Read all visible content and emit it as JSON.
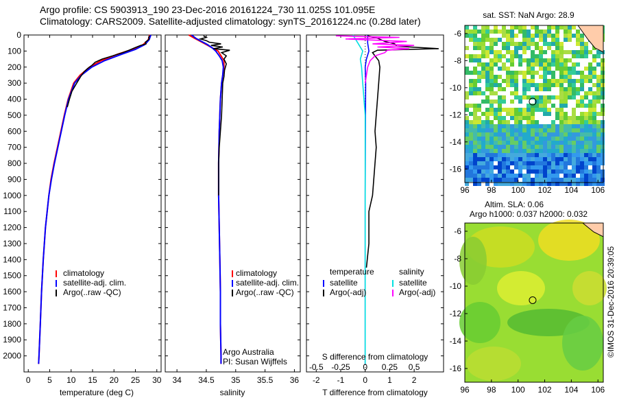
{
  "header": {
    "line1": "Argo profile: CS 5903913_190 23-Dec-2016 20161224_730 11.025S 101.095E",
    "line2": "Climatology: CARS2009. Satellite-adjusted climatology: synTS_20161224.nc (0.28d later)"
  },
  "side_label": "©IMOS 31-Dec-2016 20:39:05",
  "credits": {
    "line1": "Argo Australia",
    "line2": "PI: Susan Wijffels"
  },
  "colors": {
    "climatology": "#ff0000",
    "satellite": "#0000ff",
    "argo": "#000000",
    "sal_satellite": "#00e0e0",
    "sal_argo": "#ff00ff",
    "land": "#ffccaa",
    "sst_marker": "#000000"
  },
  "chart_data": [
    {
      "type": "line",
      "xlabel": "temperature (deg C)",
      "xlim": [
        -1,
        31
      ],
      "ylim": [
        2100,
        0
      ],
      "xticks": [
        0,
        5,
        10,
        15,
        20,
        25,
        30
      ],
      "yticks": [
        0,
        100,
        200,
        300,
        400,
        500,
        600,
        700,
        800,
        900,
        1000,
        1100,
        1200,
        1300,
        1400,
        1500,
        1600,
        1700,
        1800,
        1900,
        2000
      ],
      "legend": [
        "climatology",
        "satellite-adj. clim.",
        "Argo(..raw -QC)"
      ],
      "series": [
        {
          "name": "climatology",
          "depth": [
            0,
            30,
            60,
            90,
            120,
            160,
            200,
            250,
            300,
            400,
            500,
            600,
            700,
            800,
            900,
            1000,
            1200,
            1400,
            1600,
            1800,
            2000,
            2050
          ],
          "values": [
            28.3,
            28.0,
            26.8,
            24.3,
            20.8,
            17.0,
            14.3,
            12.1,
            10.6,
            9.3,
            8.4,
            7.6,
            6.8,
            6.0,
            5.3,
            4.8,
            4.0,
            3.5,
            3.1,
            2.8,
            2.5,
            2.4
          ]
        },
        {
          "name": "satellite-adj. clim.",
          "depth": [
            0,
            30,
            60,
            90,
            120,
            160,
            200,
            250,
            300,
            400,
            500,
            600,
            700,
            800,
            900,
            1000,
            1200,
            1400,
            1600,
            1800,
            2000,
            2050
          ],
          "values": [
            28.6,
            28.2,
            27.2,
            25.0,
            21.8,
            17.8,
            14.8,
            12.4,
            10.8,
            9.4,
            8.5,
            7.7,
            6.9,
            6.1,
            5.4,
            4.8,
            4.0,
            3.5,
            3.1,
            2.8,
            2.5,
            2.4
          ]
        },
        {
          "name": "Argo(..raw -QC)",
          "depth": [
            5,
            15,
            25,
            35,
            45,
            55,
            65,
            80,
            95,
            110,
            130,
            150,
            170,
            190,
            210,
            230,
            260,
            300,
            350,
            400,
            450
          ],
          "values": [
            28.3,
            28.1,
            28.2,
            27.8,
            27.3,
            27.5,
            26.2,
            24.8,
            23.5,
            22.0,
            19.7,
            17.2,
            15.6,
            14.8,
            13.8,
            13.0,
            12.2,
            11.3,
            10.2,
            9.6,
            9.1
          ]
        }
      ]
    },
    {
      "type": "line",
      "xlabel": "salinity",
      "xlim": [
        33.8,
        36.1
      ],
      "ylim": [
        2100,
        0
      ],
      "xticks": [
        34,
        34.5,
        35,
        35.5,
        36
      ],
      "legend": [
        "climatology",
        "satellite-adj. clim.",
        "Argo(..raw -QC)"
      ],
      "series": [
        {
          "name": "climatology",
          "depth": [
            0,
            20,
            40,
            60,
            80,
            100,
            130,
            160,
            200,
            250,
            300,
            400,
            600,
            800,
            1000,
            1200,
            1400,
            1600,
            1800,
            2000,
            2050
          ],
          "values": [
            34.2,
            34.3,
            34.4,
            34.5,
            34.6,
            34.7,
            34.75,
            34.8,
            34.8,
            34.78,
            34.76,
            34.74,
            34.72,
            34.71,
            34.71,
            34.72,
            34.73,
            34.74,
            34.74,
            34.75,
            34.75
          ]
        },
        {
          "name": "satellite-adj. clim.",
          "depth": [
            0,
            20,
            40,
            60,
            80,
            100,
            130,
            160,
            200,
            250,
            300,
            400,
            600,
            800,
            1000,
            1200,
            1400,
            1600,
            1800,
            2000,
            2050
          ],
          "values": [
            34.25,
            34.32,
            34.42,
            34.52,
            34.6,
            34.66,
            34.72,
            34.77,
            34.79,
            34.78,
            34.76,
            34.74,
            34.72,
            34.71,
            34.71,
            34.72,
            34.73,
            34.74,
            34.74,
            34.75,
            34.75
          ]
        },
        {
          "name": "Argo(..raw -QC)",
          "depth": [
            5,
            15,
            25,
            35,
            45,
            55,
            65,
            75,
            85,
            95,
            110,
            130,
            150,
            180,
            220,
            260,
            300,
            400,
            500,
            600,
            700,
            800,
            900,
            1000
          ],
          "values": [
            34.45,
            34.5,
            34.4,
            34.5,
            34.55,
            34.75,
            34.58,
            34.78,
            34.62,
            34.9,
            34.76,
            34.84,
            34.8,
            34.84,
            34.81,
            34.8,
            34.78,
            34.77,
            34.76,
            34.74,
            34.72,
            34.71,
            34.71,
            34.71
          ]
        }
      ]
    },
    {
      "type": "line",
      "xlabel": "T difference from climatology",
      "top_label": "S difference from climatology",
      "xlim": [
        -2.4,
        3.2
      ],
      "ylim": [
        2100,
        0
      ],
      "xticks": [
        -2,
        -1,
        0,
        1,
        2
      ],
      "top_ticks": [
        "-0.5",
        "-0.25",
        "0",
        "0.25",
        "0.5"
      ],
      "legend_left_title": "temperature",
      "legend_right_title": "salinity",
      "legend": [
        "satellite",
        "Argo(-adj)",
        "satellite",
        "Argo(-adj)"
      ],
      "series": [
        {
          "name": "temperature satellite",
          "depth": [
            0,
            50,
            100,
            150,
            200,
            300,
            500,
            1000,
            1500,
            2050
          ],
          "values": [
            0.1,
            0.1,
            0.15,
            0.05,
            0.0,
            0.02,
            0.01,
            0.0,
            0.0,
            0.0
          ]
        },
        {
          "name": "temperature Argo(-adj)",
          "depth": [
            5,
            20,
            40,
            55,
            70,
            85,
            95,
            110,
            130,
            160,
            200,
            300,
            400,
            500,
            600,
            700,
            800,
            900,
            1000,
            1100,
            1300,
            1450
          ],
          "values": [
            0.1,
            0.5,
            0.8,
            1.2,
            1.3,
            3.0,
            0.5,
            0.3,
            0.4,
            0.55,
            0.6,
            0.55,
            0.5,
            0.45,
            0.4,
            0.45,
            0.4,
            0.35,
            0.3,
            0.15,
            0.15,
            0.05
          ]
        },
        {
          "name": "salinity satellite",
          "depth": [
            0,
            50,
            100,
            150,
            200,
            300,
            500,
            1000,
            1500,
            2050
          ],
          "values": [
            -0.5,
            -0.3,
            -0.1,
            -0.2,
            -0.15,
            -0.1,
            0.0,
            0.0,
            0.0,
            0.0
          ]
        },
        {
          "name": "salinity Argo(-adj)",
          "depth": [
            5,
            15,
            25,
            40,
            55,
            65,
            75,
            85,
            95,
            110,
            130,
            160,
            200,
            250,
            300
          ],
          "values": [
            -1.2,
            1.4,
            -0.8,
            1.7,
            0.3,
            2.0,
            0.5,
            1.8,
            0.9,
            0.8,
            0.4,
            0.2,
            0.1,
            0.05,
            0.0
          ]
        }
      ]
    },
    {
      "type": "heatmap",
      "title": "sat. SST: NaN Argo: 28.9",
      "xlim": [
        96,
        106.4
      ],
      "ylim": [
        -17,
        -5.4
      ],
      "xticks": [
        96,
        98,
        100,
        102,
        104,
        106
      ],
      "yticks": [
        -6,
        -8,
        -10,
        -12,
        -14,
        -16
      ],
      "marker": [
        101.095,
        -11.025
      ]
    },
    {
      "type": "heatmap",
      "title": "Altim. SLA: 0.06",
      "subtitle": "Argo h1000: 0.037 h2000: 0.032",
      "xlim": [
        96,
        106.4
      ],
      "ylim": [
        -17,
        -5.4
      ],
      "xticks": [
        96,
        98,
        100,
        102,
        104,
        106
      ],
      "yticks": [
        -6,
        -8,
        -10,
        -12,
        -14,
        -16
      ],
      "marker": [
        101.095,
        -11.025
      ]
    }
  ]
}
